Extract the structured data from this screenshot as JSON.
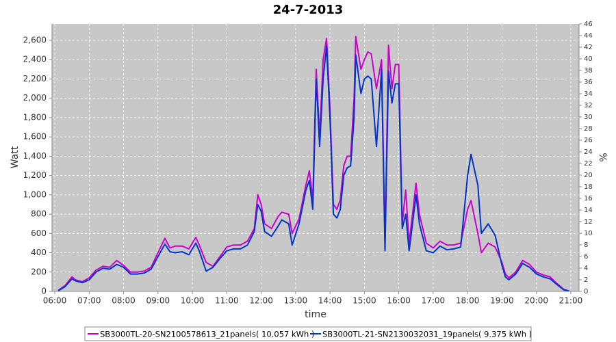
{
  "chart_data": {
    "type": "line",
    "title": "24-7-2013",
    "x_label": "time",
    "y_label": "Watt",
    "y2_label": "%",
    "xlim": [
      5.92,
      21.24
    ],
    "xticks": [
      {
        "value": 6,
        "label": "06:00"
      },
      {
        "value": 7,
        "label": "07:00"
      },
      {
        "value": 8,
        "label": "08:00"
      },
      {
        "value": 9,
        "label": "09:00"
      },
      {
        "value": 10,
        "label": "10:00"
      },
      {
        "value": 11,
        "label": "11:00"
      },
      {
        "value": 12,
        "label": "12:00"
      },
      {
        "value": 13,
        "label": "13:00"
      },
      {
        "value": 14,
        "label": "14:00"
      },
      {
        "value": 15,
        "label": "15:00"
      },
      {
        "value": 16,
        "label": "16:00"
      },
      {
        "value": 17,
        "label": "17:00"
      },
      {
        "value": 18,
        "label": "18:00"
      },
      {
        "value": 19,
        "label": "19:00"
      },
      {
        "value": 20,
        "label": "20:00"
      },
      {
        "value": 21,
        "label": "21:00"
      }
    ],
    "ylim": [
      0,
      2770
    ],
    "yticks": [
      0,
      200,
      400,
      600,
      800,
      {
        "value": 1000,
        "label": "1,000"
      },
      {
        "value": 1200,
        "label": "1,200"
      },
      {
        "value": 1400,
        "label": "1,400"
      },
      {
        "value": 1600,
        "label": "1,600"
      },
      {
        "value": 1800,
        "label": "1,800"
      },
      {
        "value": 2000,
        "label": "2,000"
      },
      {
        "value": 2200,
        "label": "2,200"
      },
      {
        "value": 2400,
        "label": "2,400"
      },
      {
        "value": 2600,
        "label": "2,600"
      }
    ],
    "y2lim": [
      0,
      46
    ],
    "y2ticks": [
      0,
      2,
      4,
      6,
      8,
      10,
      12,
      14,
      16,
      18,
      20,
      22,
      24,
      26,
      28,
      30,
      32,
      34,
      36,
      38,
      40,
      42,
      44,
      46
    ],
    "grid": true,
    "x": [
      6.1,
      6.3,
      6.5,
      6.6,
      6.8,
      7.0,
      7.2,
      7.4,
      7.6,
      7.8,
      8.0,
      8.2,
      8.4,
      8.6,
      8.8,
      9.0,
      9.2,
      9.35,
      9.5,
      9.7,
      9.9,
      10.1,
      10.2,
      10.4,
      10.6,
      10.8,
      11.0,
      11.2,
      11.4,
      11.6,
      11.8,
      11.9,
      12.0,
      12.1,
      12.3,
      12.5,
      12.6,
      12.8,
      12.9,
      13.1,
      13.3,
      13.4,
      13.5,
      13.6,
      13.7,
      13.8,
      13.9,
      14.0,
      14.1,
      14.2,
      14.3,
      14.4,
      14.5,
      14.6,
      14.7,
      14.75,
      14.9,
      15.0,
      15.1,
      15.2,
      15.35,
      15.5,
      15.6,
      15.7,
      15.8,
      15.9,
      16.0,
      16.1,
      16.2,
      16.3,
      16.4,
      16.5,
      16.6,
      16.8,
      17.0,
      17.2,
      17.4,
      17.6,
      17.8,
      18.0,
      18.1,
      18.3,
      18.4,
      18.6,
      18.8,
      19.0,
      19.1,
      19.2,
      19.4,
      19.6,
      19.8,
      20.0,
      20.2,
      20.4,
      20.6,
      20.8,
      20.95
    ],
    "series": [
      {
        "name": "SB3000TL-20-SN2100578613_21panels( 10.057 kWh )",
        "color": "#cc00cc",
        "values": [
          10,
          60,
          150,
          120,
          100,
          140,
          220,
          260,
          250,
          320,
          270,
          200,
          200,
          210,
          250,
          400,
          550,
          450,
          470,
          470,
          440,
          560,
          480,
          300,
          260,
          360,
          460,
          480,
          480,
          520,
          650,
          1000,
          900,
          700,
          650,
          780,
          820,
          800,
          600,
          750,
          1100,
          1250,
          950,
          2300,
          1600,
          2400,
          2620,
          1900,
          900,
          850,
          950,
          1300,
          1400,
          1400,
          2000,
          2640,
          2300,
          2400,
          2480,
          2460,
          2100,
          2400,
          500,
          2550,
          2100,
          2350,
          2350,
          700,
          1050,
          500,
          800,
          1120,
          800,
          500,
          450,
          520,
          480,
          480,
          500,
          850,
          940,
          600,
          400,
          500,
          460,
          300,
          180,
          140,
          200,
          320,
          280,
          200,
          170,
          150,
          80,
          20,
          5
        ]
      },
      {
        "name": "SB3000TL-21-SN2130032031_19panels( 9.375 kWh )",
        "color": "#0033cc",
        "values": [
          5,
          50,
          130,
          110,
          90,
          120,
          200,
          240,
          230,
          280,
          250,
          180,
          180,
          190,
          230,
          360,
          490,
          410,
          400,
          410,
          380,
          500,
          420,
          210,
          250,
          340,
          420,
          440,
          440,
          480,
          620,
          900,
          830,
          620,
          570,
          680,
          740,
          700,
          480,
          700,
          1050,
          1150,
          850,
          2200,
          1500,
          2200,
          2540,
          1800,
          800,
          760,
          850,
          1200,
          1280,
          1300,
          1800,
          2450,
          2050,
          2200,
          2230,
          2200,
          1500,
          2300,
          420,
          2280,
          1950,
          2150,
          2150,
          650,
          800,
          420,
          700,
          1000,
          700,
          420,
          400,
          470,
          430,
          440,
          460,
          1200,
          1420,
          1100,
          600,
          700,
          580,
          270,
          150,
          120,
          180,
          290,
          250,
          180,
          150,
          130,
          70,
          15,
          5
        ]
      }
    ]
  }
}
